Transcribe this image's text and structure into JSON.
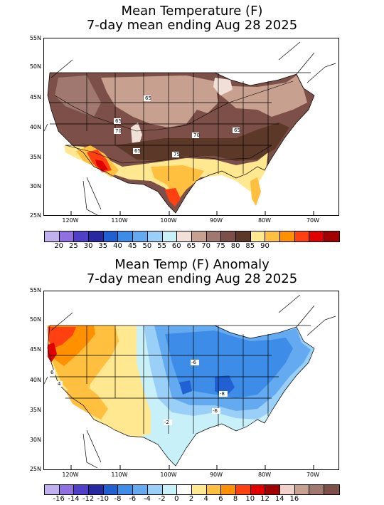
{
  "panel1": {
    "title_line1": "Mean Temperature (F)",
    "title_line2": "7-day mean ending Aug 28 2025",
    "lat_labels": [
      "55N",
      "50N",
      "45N",
      "40N",
      "35N",
      "30N",
      "25N"
    ],
    "lon_labels": [
      "120W",
      "110W",
      "100W",
      "90W",
      "80W",
      "70W"
    ],
    "contour_labels": [
      "65",
      "65",
      "70",
      "65",
      "70",
      "65",
      "75"
    ],
    "colorbar": {
      "colors": [
        "#c0b0f0",
        "#9070e0",
        "#5040c8",
        "#2828a0",
        "#2060d0",
        "#3c8ce8",
        "#64aaf0",
        "#9ad0f8",
        "#c8f0f8",
        "#f0e0d8",
        "#c8a090",
        "#a07870",
        "#7c5048",
        "#5c3828",
        "#ffe890",
        "#ffc040",
        "#ff9000",
        "#ff4010",
        "#e00000",
        "#a00000"
      ],
      "labels": [
        "20",
        "25",
        "30",
        "35",
        "40",
        "45",
        "50",
        "55",
        "60",
        "65",
        "70",
        "75",
        "80",
        "85",
        "90"
      ]
    }
  },
  "panel2": {
    "title_line1": "Mean Temp (F) Anomaly",
    "title_line2": "7-day mean ending Aug 28 2025",
    "lat_labels": [
      "55N",
      "50N",
      "45N",
      "40N",
      "35N",
      "30N",
      "25N"
    ],
    "lon_labels": [
      "120W",
      "110W",
      "100W",
      "90W",
      "80W",
      "70W"
    ],
    "contour_labels": [
      "6",
      "4",
      "-6",
      "-8",
      "-6",
      "-2"
    ],
    "colorbar": {
      "colors": [
        "#c0b0f0",
        "#9070e0",
        "#5040c8",
        "#2828a0",
        "#2060d0",
        "#3c8ce8",
        "#64aaf0",
        "#9ad0f8",
        "#c8f0f8",
        "#ffffff",
        "#ffe890",
        "#ffc040",
        "#ff9000",
        "#ff4010",
        "#e00000",
        "#a00000",
        "#f0d0c8",
        "#c8a090",
        "#a07870",
        "#7c5048"
      ],
      "labels": [
        "-16",
        "-14",
        "-12",
        "-10",
        "-8",
        "-6",
        "-4",
        "-2",
        "0",
        "2",
        "4",
        "6",
        "8",
        "10",
        "12",
        "14",
        "16"
      ]
    }
  }
}
